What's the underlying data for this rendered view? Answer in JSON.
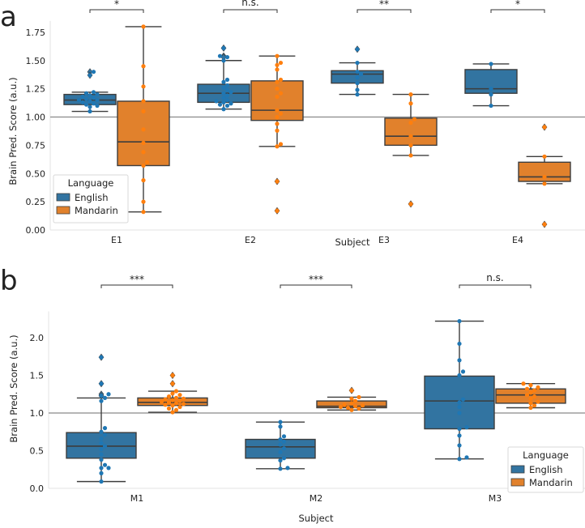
{
  "chart_data": [
    {
      "type": "box",
      "panel_label": "a",
      "xlabel": "Subject",
      "ylabel": "Brain Pred.  Score (a.u.)",
      "ylim": [
        0,
        1.85
      ],
      "yticks": [
        "0.00",
        "0.25",
        "0.50",
        "0.75",
        "1.00",
        "1.25",
        "1.50",
        "1.75"
      ],
      "ytick_values": [
        0,
        0.25,
        0.5,
        0.75,
        1.0,
        1.25,
        1.5,
        1.75
      ],
      "reference_line": 1.0,
      "categories": [
        "E1",
        "E2",
        "E3",
        "E4"
      ],
      "legend": {
        "title": "Language",
        "entries": [
          "English",
          "Mandarin"
        ],
        "placement": "lower-left"
      },
      "colors": {
        "English": "#3274a1",
        "Mandarin": "#e1812c",
        "English_points": "#1f77b4",
        "Mandarin_points": "#ff7f0e"
      },
      "significance": [
        "*",
        "n.s.",
        "**",
        "*"
      ],
      "series": [
        {
          "name": "English",
          "boxes": [
            {
              "q1": 1.11,
              "median": 1.15,
              "q3": 1.2,
              "whislo": 1.05,
              "whishi": 1.22,
              "fliers": [
                1.4,
                1.37
              ],
              "points": [
                1.05,
                1.09,
                1.1,
                1.11,
                1.12,
                1.13,
                1.14,
                1.15,
                1.15,
                1.16,
                1.17,
                1.18,
                1.19,
                1.2,
                1.21,
                1.22,
                1.37,
                1.4
              ]
            },
            {
              "q1": 1.13,
              "median": 1.21,
              "q3": 1.29,
              "whislo": 1.07,
              "whishi": 1.5,
              "fliers": [
                1.61,
                1.54,
                1.53
              ],
              "points": [
                1.07,
                1.1,
                1.11,
                1.12,
                1.13,
                1.14,
                1.15,
                1.17,
                1.19,
                1.21,
                1.22,
                1.24,
                1.26,
                1.28,
                1.31,
                1.33,
                1.5,
                1.53,
                1.54,
                1.61
              ]
            },
            {
              "q1": 1.3,
              "median": 1.38,
              "q3": 1.41,
              "whislo": 1.2,
              "whishi": 1.48,
              "fliers": [
                1.6
              ],
              "points": [
                1.2,
                1.24,
                1.3,
                1.35,
                1.38,
                1.4,
                1.48,
                1.6
              ]
            },
            {
              "q1": 1.21,
              "median": 1.25,
              "q3": 1.42,
              "whislo": 1.1,
              "whishi": 1.47,
              "fliers": [],
              "points": [
                1.1,
                1.2,
                1.25,
                1.47
              ]
            }
          ]
        },
        {
          "name": "Mandarin",
          "boxes": [
            {
              "q1": 0.57,
              "median": 0.78,
              "q3": 1.14,
              "whislo": 0.16,
              "whishi": 1.8,
              "fliers": [],
              "points": [
                0.16,
                0.25,
                0.44,
                0.57,
                0.6,
                0.69,
                0.77,
                0.89,
                1.05,
                1.14,
                1.27,
                1.45,
                1.8
              ]
            },
            {
              "q1": 0.97,
              "median": 1.06,
              "q3": 1.32,
              "whislo": 0.74,
              "whishi": 1.54,
              "fliers": [
                0.43,
                0.17
              ],
              "points": [
                0.17,
                0.43,
                0.74,
                0.76,
                0.88,
                0.94,
                1.0,
                1.03,
                1.06,
                1.18,
                1.21,
                1.25,
                1.31,
                1.33,
                1.42,
                1.46,
                1.48,
                1.54
              ]
            },
            {
              "q1": 0.75,
              "median": 0.83,
              "q3": 0.99,
              "whislo": 0.66,
              "whishi": 1.2,
              "fliers": [
                0.23
              ],
              "points": [
                0.23,
                0.66,
                0.75,
                0.83,
                0.95,
                0.98,
                1.12,
                1.2
              ]
            },
            {
              "q1": 0.43,
              "median": 0.47,
              "q3": 0.6,
              "whislo": 0.41,
              "whishi": 0.65,
              "fliers": [
                0.91,
                0.05
              ],
              "points": [
                0.05,
                0.41,
                0.47,
                0.65,
                0.91
              ]
            }
          ]
        }
      ]
    },
    {
      "type": "box",
      "panel_label": "b",
      "xlabel": "Subject",
      "ylabel": "Brain Pred.  Score (a.u.)",
      "ylim": [
        0,
        2.35
      ],
      "yticks": [
        "0.0",
        "0.5",
        "1.0",
        "1.5",
        "2.0"
      ],
      "ytick_values": [
        0,
        0.5,
        1.0,
        1.5,
        2.0
      ],
      "reference_line": 1.0,
      "categories": [
        "M1",
        "M2",
        "M3"
      ],
      "legend": {
        "title": "Language",
        "entries": [
          "English",
          "Mandarin"
        ],
        "placement": "lower-right"
      },
      "colors": {
        "English": "#3274a1",
        "Mandarin": "#e1812c",
        "English_points": "#1f77b4",
        "Mandarin_points": "#ff7f0e"
      },
      "significance": [
        "***",
        "***",
        "n.s."
      ],
      "series": [
        {
          "name": "English",
          "boxes": [
            {
              "q1": 0.4,
              "median": 0.56,
              "q3": 0.74,
              "whislo": 0.09,
              "whishi": 1.2,
              "fliers": [
                1.74,
                1.39,
                1.25,
                1.23
              ],
              "points": [
                0.09,
                0.2,
                0.27,
                0.27,
                0.31,
                0.38,
                0.45,
                0.52,
                0.56,
                0.6,
                0.66,
                0.71,
                0.75,
                0.8,
                1.16,
                1.2,
                1.23,
                1.25,
                1.39,
                1.74
              ]
            },
            {
              "q1": 0.4,
              "median": 0.55,
              "q3": 0.65,
              "whislo": 0.26,
              "whishi": 0.88,
              "fliers": [],
              "points": [
                0.26,
                0.27,
                0.37,
                0.4,
                0.48,
                0.53,
                0.58,
                0.62,
                0.65,
                0.69,
                0.82,
                0.88
              ]
            },
            {
              "q1": 0.79,
              "median": 1.16,
              "q3": 1.49,
              "whislo": 0.39,
              "whishi": 2.22,
              "fliers": [],
              "points": [
                0.39,
                0.41,
                0.57,
                0.7,
                0.79,
                0.81,
                1.0,
                1.08,
                1.14,
                1.18,
                1.5,
                1.55,
                1.7,
                1.92,
                2.22
              ]
            }
          ]
        },
        {
          "name": "Mandarin",
          "boxes": [
            {
              "q1": 1.1,
              "median": 1.14,
              "q3": 1.2,
              "whislo": 1.01,
              "whishi": 1.29,
              "fliers": [
                1.5,
                1.39
              ],
              "points": [
                1.01,
                1.04,
                1.06,
                1.08,
                1.1,
                1.11,
                1.12,
                1.13,
                1.14,
                1.15,
                1.16,
                1.17,
                1.18,
                1.19,
                1.2,
                1.22,
                1.24,
                1.26,
                1.29,
                1.39,
                1.5
              ]
            },
            {
              "q1": 1.07,
              "median": 1.09,
              "q3": 1.16,
              "whislo": 1.04,
              "whishi": 1.21,
              "fliers": [
                1.3
              ],
              "points": [
                1.04,
                1.06,
                1.07,
                1.08,
                1.09,
                1.1,
                1.11,
                1.13,
                1.16,
                1.19,
                1.21,
                1.3
              ]
            },
            {
              "q1": 1.13,
              "median": 1.24,
              "q3": 1.32,
              "whislo": 1.07,
              "whishi": 1.39,
              "fliers": [],
              "points": [
                1.07,
                1.1,
                1.13,
                1.15,
                1.19,
                1.22,
                1.24,
                1.27,
                1.3,
                1.32,
                1.34,
                1.37,
                1.39
              ]
            }
          ]
        }
      ]
    }
  ]
}
